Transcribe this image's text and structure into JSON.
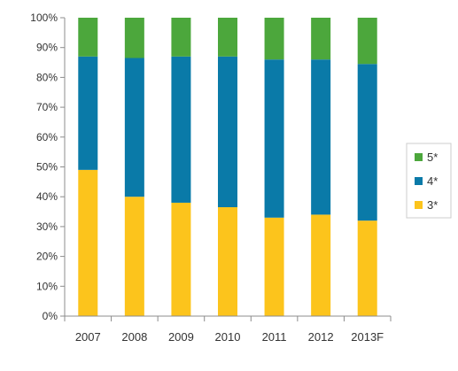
{
  "chart_data": {
    "type": "bar",
    "stacked": true,
    "normalized": true,
    "title": "",
    "xlabel": "",
    "ylabel": "",
    "ylim": [
      0,
      100
    ],
    "yticks": [
      "0%",
      "10%",
      "20%",
      "30%",
      "40%",
      "50%",
      "60%",
      "70%",
      "80%",
      "90%",
      "100%"
    ],
    "categories": [
      "2007",
      "2008",
      "2009",
      "2010",
      "2011",
      "2012",
      "2013F"
    ],
    "series": [
      {
        "name": "3*",
        "color": "#fcc41c",
        "values": [
          49,
          40,
          38,
          36.5,
          33,
          34,
          32
        ]
      },
      {
        "name": "4*",
        "color": "#0a7aa8",
        "values": [
          38,
          46.5,
          49,
          50.5,
          53,
          52,
          52.5
        ]
      },
      {
        "name": "5*",
        "color": "#4ca73c",
        "values": [
          13,
          13.5,
          13,
          13,
          14,
          14,
          15.5
        ]
      }
    ],
    "legend": {
      "position": "right",
      "order": [
        "5*",
        "4*",
        "3*"
      ]
    },
    "grid": false
  }
}
